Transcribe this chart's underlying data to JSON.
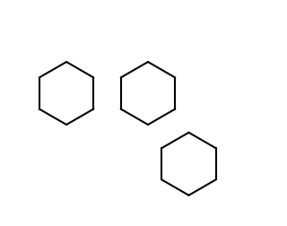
{
  "bg_color": "#ffffff",
  "line_color": "#000000",
  "line_width": 1.5,
  "figsize": [
    3.2,
    2.52
  ],
  "dpi": 100
}
